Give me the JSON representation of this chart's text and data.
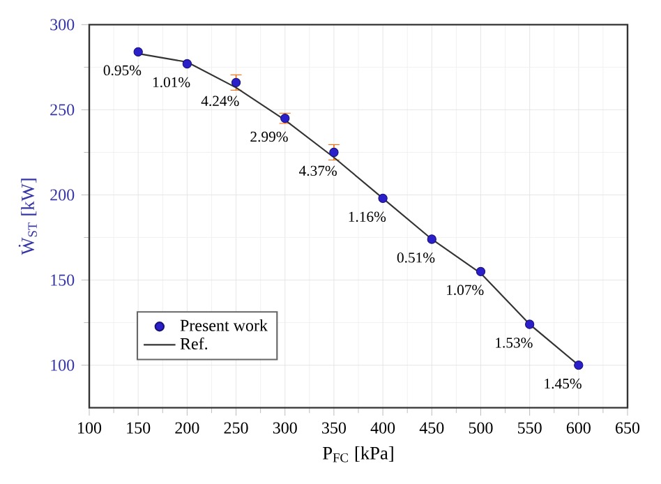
{
  "chart_data": {
    "type": "scatter",
    "xlabel": "P$_{FC}$ [kPa]",
    "ylabel": "Ẇ$_{ST}$ [kW]",
    "x": [
      150,
      200,
      250,
      300,
      350,
      400,
      450,
      500,
      550,
      600
    ],
    "series": [
      {
        "name": "Present work",
        "color": "#2a1fc8",
        "marker": "circle",
        "values": [
          284,
          277,
          266,
          245,
          225,
          198,
          174,
          155,
          124,
          100
        ],
        "errors": [
          null,
          null,
          4.5,
          3,
          4.5,
          null,
          null,
          null,
          null,
          null
        ]
      },
      {
        "name": "Ref.",
        "type": "line",
        "color": "#333333",
        "line_style": "solid",
        "marker": "none",
        "values": [
          283,
          278,
          263,
          244,
          222,
          198,
          174,
          154,
          124,
          100
        ]
      }
    ],
    "xlim": [
      100,
      650
    ],
    "ylim": [
      75,
      300
    ],
    "xticks": [
      100,
      150,
      200,
      250,
      300,
      350,
      400,
      450,
      500,
      550,
      600,
      650
    ],
    "yticks": [
      100,
      150,
      200,
      250,
      300
    ],
    "grid": true,
    "legend": "bottom left",
    "annotations": [
      {
        "text": "0.95%",
        "x": 150,
        "y": 284
      },
      {
        "text": "1.01%",
        "x": 200,
        "y": 277
      },
      {
        "text": "4.24%",
        "x": 250,
        "y": 266
      },
      {
        "text": "2.99%",
        "x": 300,
        "y": 245
      },
      {
        "text": "4.37%",
        "x": 350,
        "y": 225
      },
      {
        "text": "1.16%",
        "x": 400,
        "y": 198
      },
      {
        "text": "0.51%",
        "x": 450,
        "y": 174
      },
      {
        "text": "1.07%",
        "x": 500,
        "y": 155
      },
      {
        "text": "1.53%",
        "x": 550,
        "y": 124
      },
      {
        "text": "1.45%",
        "x": 600,
        "y": 100
      }
    ]
  }
}
